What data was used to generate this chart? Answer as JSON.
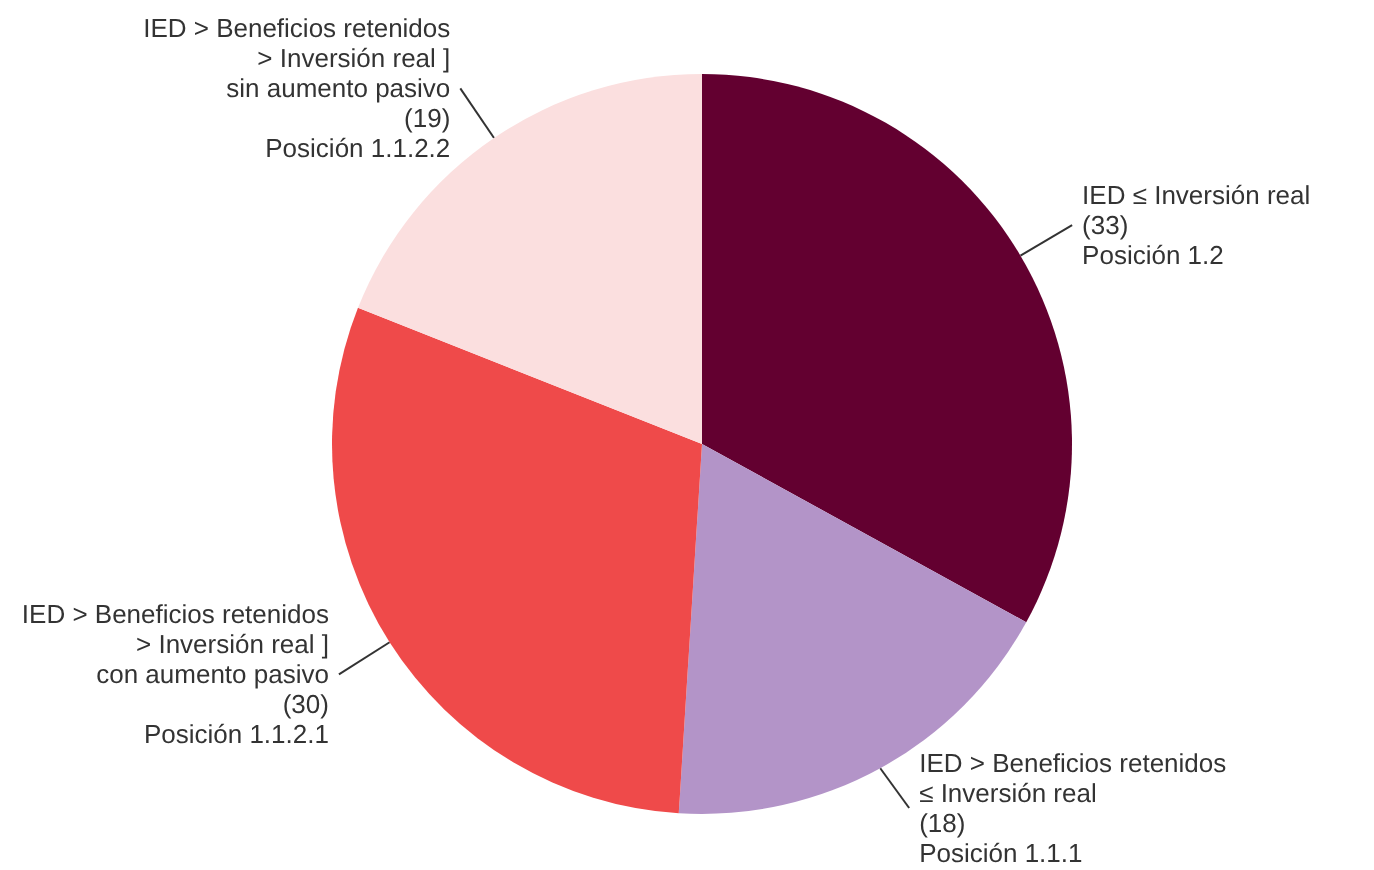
{
  "chart_data": {
    "type": "pie",
    "categories": [
      "IED ≤ Inversión real\n(33)\nPosición 1.2",
      "IED > Beneficios retenidos\n≤ Inversión real\n(18)\nPosición 1.1.1",
      "IED > Beneficios retenidos\n> Inversión real ]\ncon aumento pasivo\n(30)\nPosición 1.1.2.1",
      "IED > Beneficios retenidos\n> Inversión real ]\nsin aumento pasivo\n(19)\nPosición 1.1.2.2"
    ],
    "values": [
      33,
      18,
      30,
      19
    ],
    "colors": [
      "#630030",
      "#b394c8",
      "#ef4a4a",
      "#fbdfdf"
    ],
    "legend": false
  }
}
